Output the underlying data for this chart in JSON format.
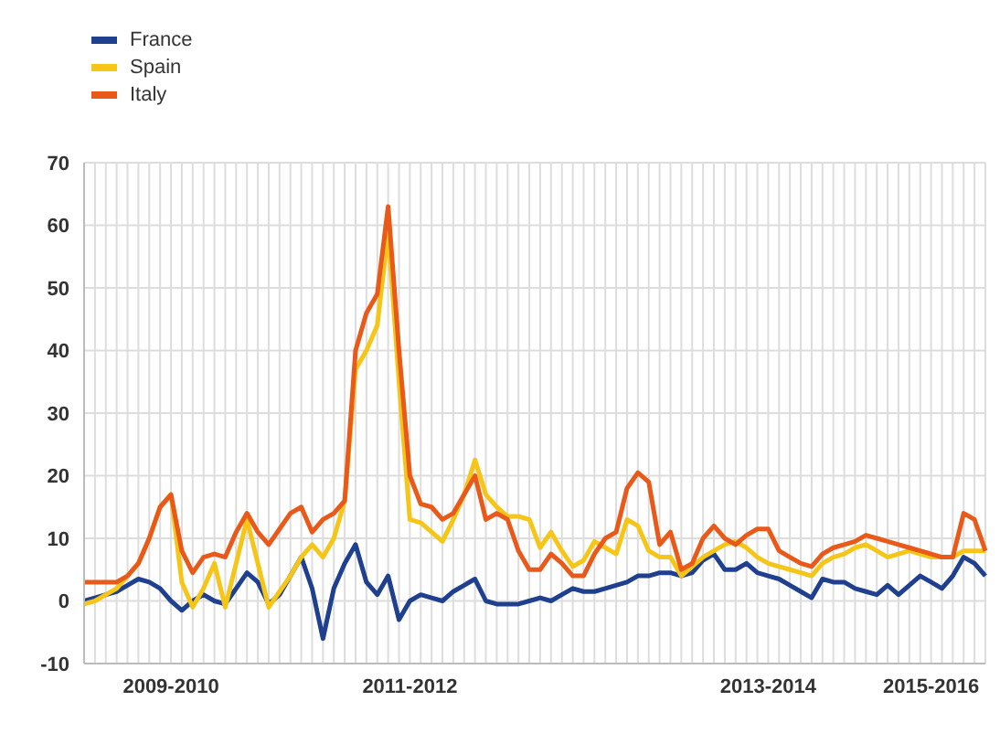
{
  "chart_data": {
    "type": "line",
    "categories": [
      null,
      null,
      null,
      null,
      null,
      null,
      null,
      null,
      "2009-2010",
      null,
      null,
      null,
      null,
      null,
      null,
      null,
      null,
      null,
      null,
      null,
      null,
      null,
      null,
      null,
      null,
      null,
      null,
      null,
      null,
      null,
      "2011-2012",
      null,
      null,
      null,
      null,
      null,
      null,
      null,
      null,
      null,
      null,
      null,
      null,
      null,
      null,
      null,
      null,
      null,
      null,
      null,
      null,
      null,
      null,
      null,
      null,
      null,
      null,
      null,
      null,
      null,
      null,
      null,
      null,
      "2013-2014",
      null,
      null,
      null,
      null,
      null,
      null,
      null,
      null,
      null,
      null,
      null,
      null,
      null,
      null,
      "2015-2016",
      null,
      null,
      null,
      null,
      null
    ],
    "series": [
      {
        "name": "France",
        "color": "#1f3f8f",
        "values": [
          0,
          0.5,
          1,
          1.5,
          2.5,
          3.5,
          3,
          2,
          0,
          -1.5,
          0,
          1,
          0,
          -0.5,
          2,
          4.5,
          3,
          -0.5,
          1,
          4,
          7,
          2,
          -6,
          2,
          6,
          9,
          3,
          1,
          4,
          -3,
          0,
          1,
          0.5,
          0,
          1.5,
          2.5,
          3.5,
          0,
          -0.5,
          -0.5,
          -0.5,
          0,
          0.5,
          0,
          1,
          2,
          1.5,
          1.5,
          2,
          2.5,
          3,
          4,
          4,
          4.5,
          4.5,
          4,
          4.5,
          6.5,
          7.5,
          5,
          5,
          6,
          4.5,
          4,
          3.5,
          2.5,
          1.5,
          0.5,
          3.5,
          3,
          3,
          2,
          1.5,
          1,
          2.5,
          1,
          2.5,
          4,
          3,
          2,
          4,
          7,
          6,
          4
        ]
      },
      {
        "name": "Spain",
        "color": "#f5c518",
        "values": [
          -0.5,
          0,
          1,
          2,
          4,
          6,
          10,
          15,
          17,
          3,
          -1,
          2,
          6,
          -1,
          6,
          13,
          6,
          -1,
          1.5,
          4,
          7,
          9,
          7,
          10,
          16,
          37,
          40,
          44,
          59,
          35,
          13,
          12.5,
          11,
          9.5,
          13,
          17,
          22.5,
          17,
          15,
          13.5,
          13.5,
          13,
          8.5,
          11,
          8,
          5.5,
          6.5,
          9.5,
          8.5,
          7.5,
          13,
          12,
          8,
          7,
          7,
          4,
          5.5,
          7,
          8,
          9,
          9.5,
          8.5,
          7,
          6,
          5.5,
          5,
          4.5,
          4,
          6,
          7,
          7.5,
          8.5,
          9,
          8,
          7,
          7.5,
          8,
          7.5,
          7,
          7,
          7,
          8,
          8,
          8
        ]
      },
      {
        "name": "Italy",
        "color": "#e8591a",
        "values": [
          3,
          3,
          3,
          3,
          4,
          6,
          10,
          15,
          17,
          8,
          4.5,
          7,
          7.5,
          7,
          11,
          14,
          11,
          9,
          11.5,
          14,
          15,
          11,
          13,
          14,
          16,
          40,
          46,
          49,
          63,
          40,
          20,
          15.5,
          15,
          13,
          14,
          17,
          20,
          13,
          14,
          13,
          8,
          5,
          5,
          7.5,
          6,
          4,
          4,
          7.5,
          10,
          11,
          18,
          20.5,
          19,
          9,
          11,
          5,
          6,
          10,
          12,
          10,
          9,
          10.5,
          11.5,
          11.5,
          8,
          7,
          6,
          5.5,
          7.5,
          8.5,
          9,
          9.5,
          10.5,
          10,
          9.5,
          9,
          8.5,
          8,
          7.5,
          7,
          7,
          14,
          13,
          8
        ]
      }
    ],
    "ylim": [
      -10,
      70
    ],
    "yticks": [
      -10,
      0,
      10,
      20,
      30,
      40,
      50,
      60,
      70
    ],
    "grid": true,
    "legend": "top left"
  }
}
